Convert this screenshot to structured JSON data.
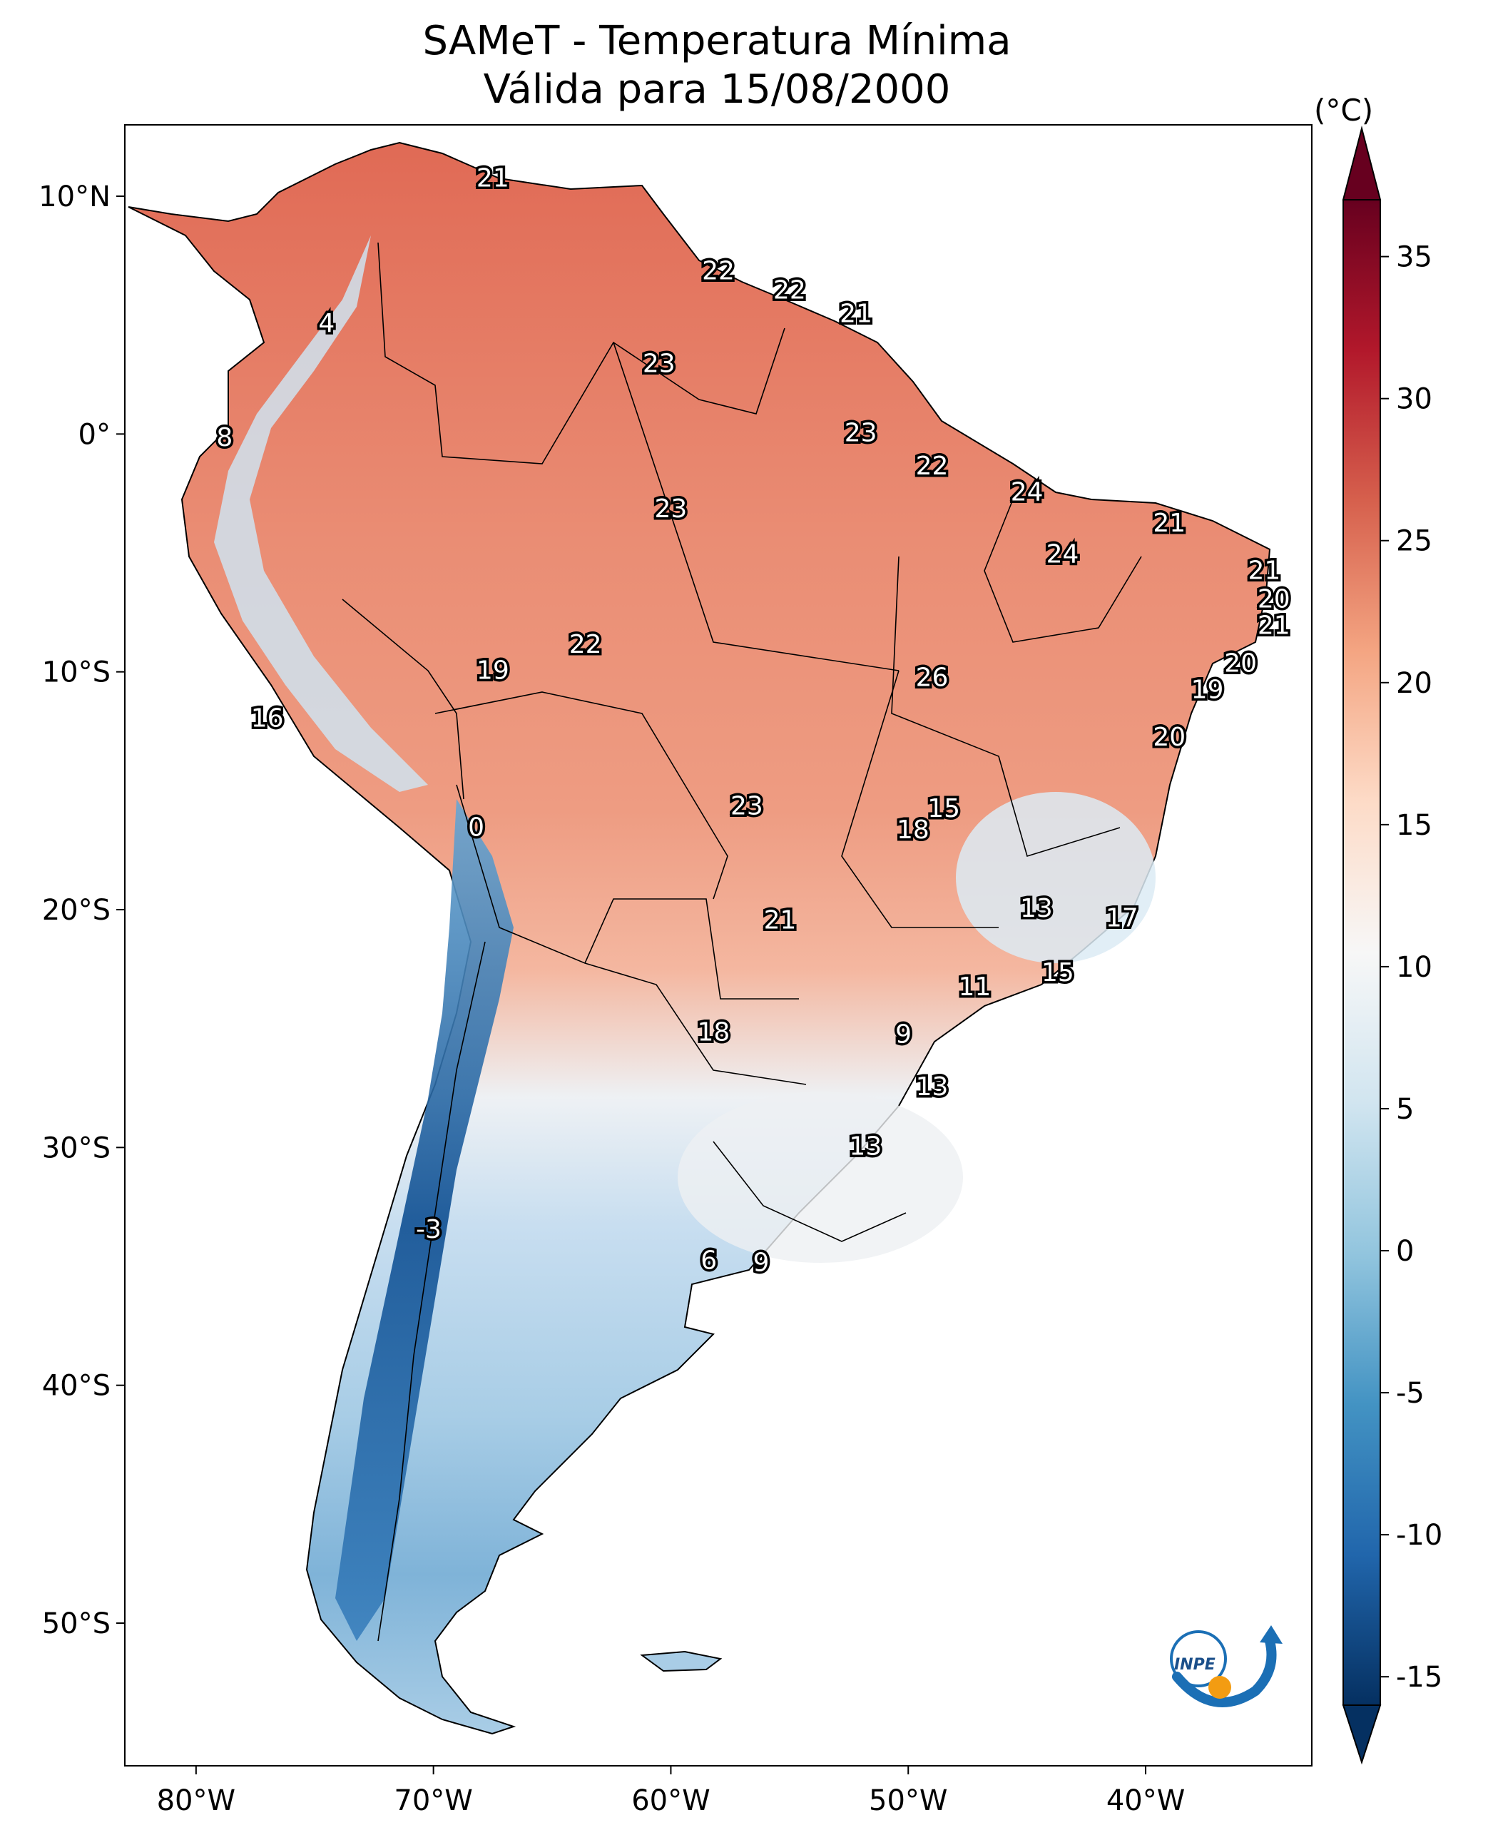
{
  "title": {
    "line1": "SAMeT - Temperatura Mínima",
    "line2": "Válida para 15/08/2000"
  },
  "colorbar": {
    "unit": "(°C)",
    "min": -15,
    "max": 35,
    "ticks": [
      "35",
      "30",
      "25",
      "20",
      "15",
      "10",
      "5",
      "0",
      "-5",
      "-10",
      "-15"
    ],
    "colors": [
      "#053061",
      "#2166ac",
      "#4393c3",
      "#92c5de",
      "#d1e5f0",
      "#f7f7f7",
      "#fddbc7",
      "#f4a582",
      "#d6604d",
      "#b2182b",
      "#67001f"
    ]
  },
  "axes": {
    "lon_ticks": [
      "80°W",
      "70°W",
      "60°W",
      "50°W",
      "40°W"
    ],
    "lat_ticks": [
      "10°N",
      "0°",
      "10°S",
      "20°S",
      "30°S",
      "40°S",
      "50°S"
    ],
    "lon_range": [
      -83,
      -33
    ],
    "lat_range": [
      -56,
      13
    ]
  },
  "map_labels": [
    {
      "text": "21",
      "lon": -67.5,
      "lat": 10.7
    },
    {
      "text": "4",
      "lon": -74.5,
      "lat": 4.6
    },
    {
      "text": "22",
      "lon": -58.0,
      "lat": 6.8
    },
    {
      "text": "22",
      "lon": -55.0,
      "lat": 6.0
    },
    {
      "text": "21",
      "lon": -52.2,
      "lat": 5.0
    },
    {
      "text": "23",
      "lon": -60.5,
      "lat": 2.9
    },
    {
      "text": "8",
      "lon": -78.8,
      "lat": -0.2
    },
    {
      "text": "23",
      "lon": -52.0,
      "lat": 0.0
    },
    {
      "text": "22",
      "lon": -49.0,
      "lat": -1.4
    },
    {
      "text": "23",
      "lon": -60.0,
      "lat": -3.2
    },
    {
      "text": "24",
      "lon": -45.0,
      "lat": -2.5
    },
    {
      "text": "21",
      "lon": -39.0,
      "lat": -3.8
    },
    {
      "text": "24",
      "lon": -43.5,
      "lat": -5.1
    },
    {
      "text": "21",
      "lon": -35.0,
      "lat": -5.8
    },
    {
      "text": "20",
      "lon": -34.6,
      "lat": -7.0
    },
    {
      "text": "21",
      "lon": -34.6,
      "lat": -8.1
    },
    {
      "text": "22",
      "lon": -63.6,
      "lat": -8.9
    },
    {
      "text": "19",
      "lon": -67.5,
      "lat": -10.0
    },
    {
      "text": "20",
      "lon": -36.0,
      "lat": -9.7
    },
    {
      "text": "26",
      "lon": -49.0,
      "lat": -10.3
    },
    {
      "text": "19",
      "lon": -37.4,
      "lat": -10.8
    },
    {
      "text": "16",
      "lon": -77.0,
      "lat": -12.0
    },
    {
      "text": "20",
      "lon": -39.0,
      "lat": -12.8
    },
    {
      "text": "23",
      "lon": -56.8,
      "lat": -15.7
    },
    {
      "text": "15",
      "lon": -48.5,
      "lat": -15.8
    },
    {
      "text": "18",
      "lon": -49.8,
      "lat": -16.7
    },
    {
      "text": "0",
      "lon": -68.2,
      "lat": -16.6
    },
    {
      "text": "13",
      "lon": -44.6,
      "lat": -20.0
    },
    {
      "text": "17",
      "lon": -41.0,
      "lat": -20.4
    },
    {
      "text": "21",
      "lon": -55.4,
      "lat": -20.5
    },
    {
      "text": "15",
      "lon": -43.7,
      "lat": -22.7
    },
    {
      "text": "11",
      "lon": -47.2,
      "lat": -23.3
    },
    {
      "text": "9",
      "lon": -50.2,
      "lat": -25.3
    },
    {
      "text": "18",
      "lon": -58.2,
      "lat": -25.2
    },
    {
      "text": "13",
      "lon": -49.0,
      "lat": -27.5
    },
    {
      "text": "13",
      "lon": -51.8,
      "lat": -30.0
    },
    {
      "text": "-3",
      "lon": -70.2,
      "lat": -33.5
    },
    {
      "text": "6",
      "lon": -58.4,
      "lat": -34.8
    },
    {
      "text": "9",
      "lon": -56.2,
      "lat": -34.9
    }
  ],
  "logo": {
    "text": "INPE"
  }
}
